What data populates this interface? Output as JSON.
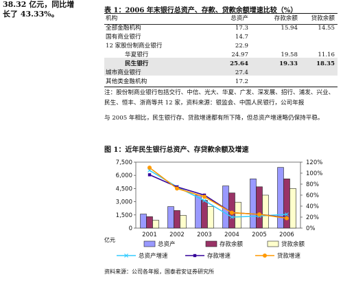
{
  "intro": {
    "line1": "38.32 亿元，同比增",
    "line2": "长了 43.33%。"
  },
  "table": {
    "title": "表 1：2006 年末银行总资产、存款、贷款余额增速比较（%）",
    "headers": [
      "机构",
      "总资产",
      "存款余额",
      "贷款余额"
    ],
    "rows": [
      {
        "name": "全部金融机构",
        "asset": "17.3",
        "deposit": "15.94",
        "loan": "14.55"
      },
      {
        "name": "国有商业银行",
        "asset": "14.7",
        "deposit": "",
        "loan": ""
      },
      {
        "name": "12 家股份制商业银行",
        "asset": "22.9",
        "deposit": "",
        "loan": ""
      },
      {
        "name": "华夏银行",
        "asset": "24.97",
        "deposit": "19.58",
        "loan": "11.16"
      },
      {
        "name": "民生银行",
        "asset": "25.64",
        "deposit": "19.33",
        "loan": "18.35"
      },
      {
        "name": "城市商业银行",
        "asset": "27.4",
        "deposit": "",
        "loan": ""
      },
      {
        "name": "其他类金融机构",
        "asset": "17.2",
        "deposit": "",
        "loan": ""
      }
    ],
    "note_line1": "注：股份制商业银行包括交行、中信、光大、华夏、广发、深发展、招行、浦发、兴业、",
    "note_line2": "民生、恒丰、浙商等共 12 家，资料来源：银监会、中国人民银行，公司年报"
  },
  "paragraph": "与 2005 年相比，民生银行存、贷款增速都有所下降，但总资产增速略仍保持平稳。",
  "figure": {
    "title": "图 1：近年民生银行总资产、存贷款余额及增速",
    "source": "资料来源：公司各年报，国泰君安证券研究所",
    "unit_label": "亿元"
  },
  "chart_data": {
    "type": "bar",
    "categories": [
      "2001",
      "2002",
      "2003",
      "2004",
      "2005",
      "2006"
    ],
    "left_axis": {
      "ticks": [
        "0",
        "1,500",
        "3,000",
        "4,500",
        "6,000",
        "7,500"
      ],
      "ylim": [
        0,
        7500
      ]
    },
    "right_axis": {
      "ticks": [
        "0%",
        "20%",
        "40%",
        "60%",
        "80%",
        "100%",
        "120%"
      ],
      "ylim": [
        0,
        1.2
      ]
    },
    "bar_series": [
      {
        "name": "总资产",
        "color": "#9999ff",
        "values": [
          1600,
          2450,
          3750,
          4800,
          5600,
          6900
        ]
      },
      {
        "name": "存款余额",
        "color": "#993366",
        "values": [
          1300,
          2000,
          3150,
          4000,
          4700,
          5600
        ]
      },
      {
        "name": "贷款余额",
        "color": "#ffffcc",
        "values": [
          900,
          1450,
          2450,
          2950,
          3750,
          4500
        ]
      }
    ],
    "line_series": [
      {
        "name": "总资产增速",
        "color": "#33ccff",
        "values": [
          1.05,
          0.75,
          0.5,
          0.2,
          0.22,
          0.25
        ]
      },
      {
        "name": "存款增速",
        "color": "#330099",
        "values": [
          0.97,
          0.75,
          0.6,
          0.28,
          0.25,
          0.19
        ]
      },
      {
        "name": "贷款增速",
        "color": "#ff9900",
        "values": [
          1.1,
          0.72,
          0.57,
          0.28,
          0.25,
          0.18
        ]
      }
    ],
    "grid": false,
    "legend": "bottom"
  }
}
